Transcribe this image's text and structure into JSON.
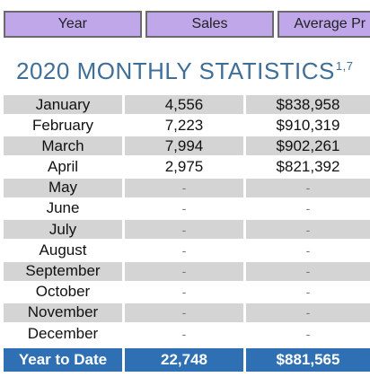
{
  "header": {
    "year": "Year",
    "sales": "Sales",
    "average_price": "Average Pr"
  },
  "title": {
    "text": "2020 MONTHLY STATISTICS",
    "superscript": "1,7"
  },
  "rows": [
    {
      "month": "January",
      "sales": "4,556",
      "average": "$838,958"
    },
    {
      "month": "February",
      "sales": "7,223",
      "average": "$910,319"
    },
    {
      "month": "March",
      "sales": "7,994",
      "average": "$902,261"
    },
    {
      "month": "April",
      "sales": "2,975",
      "average": "$821,392"
    },
    {
      "month": "May",
      "sales": "-",
      "average": "-"
    },
    {
      "month": "June",
      "sales": "-",
      "average": "-"
    },
    {
      "month": "July",
      "sales": "-",
      "average": "-"
    },
    {
      "month": "August",
      "sales": "-",
      "average": "-"
    },
    {
      "month": "September",
      "sales": "-",
      "average": "-"
    },
    {
      "month": "October",
      "sales": "-",
      "average": "-"
    },
    {
      "month": "November",
      "sales": "-",
      "average": "-"
    },
    {
      "month": "December",
      "sales": "-",
      "average": "-"
    }
  ],
  "total": {
    "label": "Year to Date",
    "sales": "22,748",
    "average": "$881,565"
  },
  "colors": {
    "header_bg": "#c0a7ea",
    "title": "#3f6f98",
    "shaded_row": "#d4d4d4",
    "total_bg": "#2f6fb3"
  }
}
